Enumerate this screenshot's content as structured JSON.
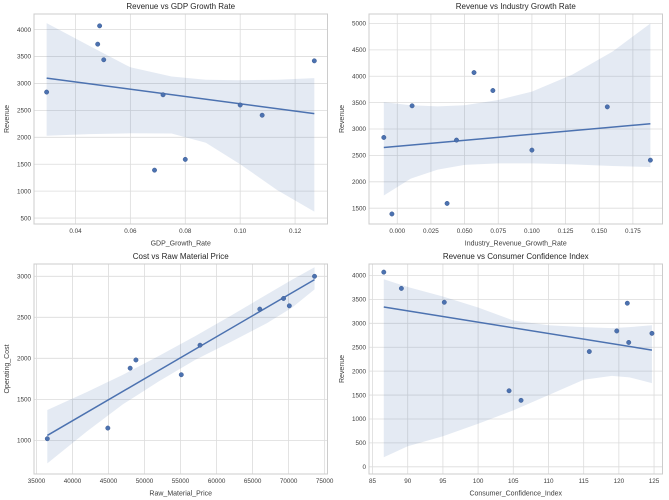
{
  "figure": {
    "background": "#ffffff",
    "rows": 2,
    "cols": 2
  },
  "colors": {
    "accent": "#4c72b0",
    "marker_fill": "#4c72b0",
    "marker_edge": "#3d5c94",
    "regression_line": "#4c72b0",
    "confidence_band": "#4c72b0",
    "band_opacity": 0.15,
    "grid_line": "#dcdcdc",
    "spine": "#cccccc",
    "title_text": "#262626",
    "tick_text": "#3d3d3d",
    "axis_label_text": "#3d3d3d",
    "background": "#ffffff"
  },
  "chart_data": [
    {
      "type": "scatter",
      "title": "Revenue vs GDP Growth Rate",
      "xlabel": "GDP_Growth_Rate",
      "ylabel": "Revenue",
      "xlim": [
        0.0249,
        0.1318
      ],
      "ylim": [
        390,
        4290
      ],
      "grid": true,
      "legend": null,
      "xticks": {
        "values": [
          0.04,
          0.06,
          0.08,
          0.1,
          0.12
        ],
        "labels": [
          "0.04",
          "0.06",
          "0.08",
          "0.10",
          "0.12"
        ]
      },
      "yticks": {
        "values": [
          500,
          1000,
          1500,
          2000,
          2500,
          3000,
          3500,
          4000
        ],
        "labels": [
          "500",
          "1000",
          "1500",
          "2000",
          "2500",
          "3000",
          "3500",
          "4000"
        ]
      },
      "points": [
        [
          0.0295,
          2840
        ],
        [
          0.0481,
          3730
        ],
        [
          0.0488,
          4070
        ],
        [
          0.0503,
          3440
        ],
        [
          0.0688,
          1390
        ],
        [
          0.0719,
          2790
        ],
        [
          0.08,
          1590
        ],
        [
          0.1,
          2600
        ],
        [
          0.108,
          2410
        ],
        [
          0.127,
          3420
        ]
      ],
      "trend": {
        "x": [
          0.0295,
          0.127
        ],
        "y": [
          3100,
          2440
        ]
      },
      "band": {
        "x": [
          0.0295,
          0.045,
          0.06,
          0.075,
          0.0875,
          0.1,
          0.1135,
          0.127
        ],
        "hi": [
          4120,
          3700,
          3300,
          3130,
          3070,
          3060,
          3070,
          3100
        ],
        "lo": [
          2030,
          2060,
          2075,
          2070,
          1900,
          1500,
          1020,
          620
        ]
      }
    },
    {
      "type": "scatter",
      "title": "Revenue vs Industry Growth Rate",
      "xlabel": "Industry_Revenue_Growth_Rate",
      "ylabel": "Revenue",
      "xlim": [
        -0.021,
        0.197
      ],
      "ylim": [
        1200,
        5180
      ],
      "grid": true,
      "legend": null,
      "xticks": {
        "values": [
          0.0,
          0.025,
          0.05,
          0.075,
          0.1,
          0.125,
          0.15,
          0.175
        ],
        "labels": [
          "0.000",
          "0.025",
          "0.050",
          "0.075",
          "0.100",
          "0.125",
          "0.150",
          "0.175"
        ]
      },
      "yticks": {
        "values": [
          1500,
          2000,
          2500,
          3000,
          3500,
          4000,
          4500,
          5000
        ],
        "labels": [
          "1500",
          "2000",
          "2500",
          "3000",
          "3500",
          "4000",
          "4500",
          "5000"
        ]
      },
      "points": [
        [
          -0.01,
          2840
        ],
        [
          -0.004,
          1390
        ],
        [
          0.011,
          3440
        ],
        [
          0.037,
          1590
        ],
        [
          0.044,
          2790
        ],
        [
          0.057,
          4070
        ],
        [
          0.071,
          3730
        ],
        [
          0.1,
          2600
        ],
        [
          0.156,
          3420
        ],
        [
          0.188,
          2410
        ]
      ],
      "trend": {
        "x": [
          -0.01,
          0.188
        ],
        "y": [
          2650,
          3100
        ]
      },
      "band": {
        "x": [
          -0.01,
          0.01,
          0.03,
          0.05,
          0.075,
          0.1,
          0.13,
          0.16,
          0.188
        ],
        "hi": [
          3510,
          3450,
          3430,
          3450,
          3550,
          3710,
          4030,
          4470,
          5000
        ],
        "lo": [
          1740,
          2060,
          2230,
          2320,
          2350,
          2350,
          2330,
          2300,
          2280
        ]
      }
    },
    {
      "type": "scatter",
      "title": "Cost vs Raw Material Price",
      "xlabel": "Raw_Material_Price",
      "ylabel": "Operating_Cost",
      "xlim": [
        34650,
        75400
      ],
      "ylim": [
        590,
        3150
      ],
      "grid": true,
      "legend": null,
      "xticks": {
        "values": [
          35000,
          40000,
          45000,
          50000,
          55000,
          60000,
          65000,
          70000,
          75000
        ],
        "labels": [
          "35000",
          "40000",
          "45000",
          "50000",
          "55000",
          "60000",
          "65000",
          "70000",
          "75000"
        ]
      },
      "yticks": {
        "values": [
          1000,
          1500,
          2000,
          2500,
          3000
        ],
        "labels": [
          "1000",
          "1500",
          "2000",
          "2500",
          "3000"
        ]
      },
      "points": [
        [
          36500,
          1020
        ],
        [
          44900,
          1150
        ],
        [
          48000,
          1880
        ],
        [
          48800,
          1980
        ],
        [
          55100,
          1800
        ],
        [
          57700,
          2160
        ],
        [
          66000,
          2600
        ],
        [
          69300,
          2730
        ],
        [
          70100,
          2640
        ],
        [
          73600,
          3000
        ]
      ],
      "trend": {
        "x": [
          36500,
          73600
        ],
        "y": [
          1060,
          2960
        ]
      },
      "band": {
        "x": [
          36500,
          42000,
          47000,
          52000,
          57000,
          62000,
          67000,
          70500,
          73600
        ],
        "hi": [
          1370,
          1590,
          1800,
          2030,
          2270,
          2520,
          2780,
          2960,
          3110
        ],
        "lo": [
          720,
          1110,
          1440,
          1720,
          1980,
          2200,
          2430,
          2620,
          2840
        ]
      }
    },
    {
      "type": "scatter",
      "title": "Revenue vs Consumer Confidence Index",
      "xlabel": "Consumer_Confidence_Index",
      "ylabel": "Revenue",
      "xlim": [
        84.5,
        126.2
      ],
      "ylim": [
        -150,
        4240
      ],
      "grid": true,
      "legend": null,
      "xticks": {
        "values": [
          85,
          90,
          95,
          100,
          105,
          110,
          115,
          120,
          125
        ],
        "labels": [
          "85",
          "90",
          "95",
          "100",
          "105",
          "110",
          "115",
          "120",
          "125"
        ]
      },
      "yticks": {
        "values": [
          0,
          500,
          1000,
          1500,
          2000,
          2500,
          3000,
          3500,
          4000
        ],
        "labels": [
          "0",
          "500",
          "1000",
          "1500",
          "2000",
          "2500",
          "3000",
          "3500",
          "4000"
        ]
      },
      "points": [
        [
          86.6,
          4070
        ],
        [
          89.1,
          3730
        ],
        [
          95.2,
          3440
        ],
        [
          104.4,
          1590
        ],
        [
          106.1,
          1390
        ],
        [
          115.8,
          2410
        ],
        [
          119.7,
          2840
        ],
        [
          121.2,
          3420
        ],
        [
          121.4,
          2600
        ],
        [
          124.7,
          2790
        ]
      ],
      "trend": {
        "x": [
          86.6,
          124.7
        ],
        "y": [
          3340,
          2440
        ]
      },
      "band": {
        "x": [
          86.6,
          90,
          95,
          100,
          105,
          110,
          115,
          119,
          121.5,
          124.7
        ],
        "hi": [
          3920,
          3760,
          3560,
          3330,
          3060,
          2960,
          2920,
          2900,
          2920,
          2960
        ],
        "lo": [
          200,
          430,
          640,
          900,
          1180,
          1500,
          1820,
          1900,
          1870,
          1750
        ]
      }
    }
  ]
}
